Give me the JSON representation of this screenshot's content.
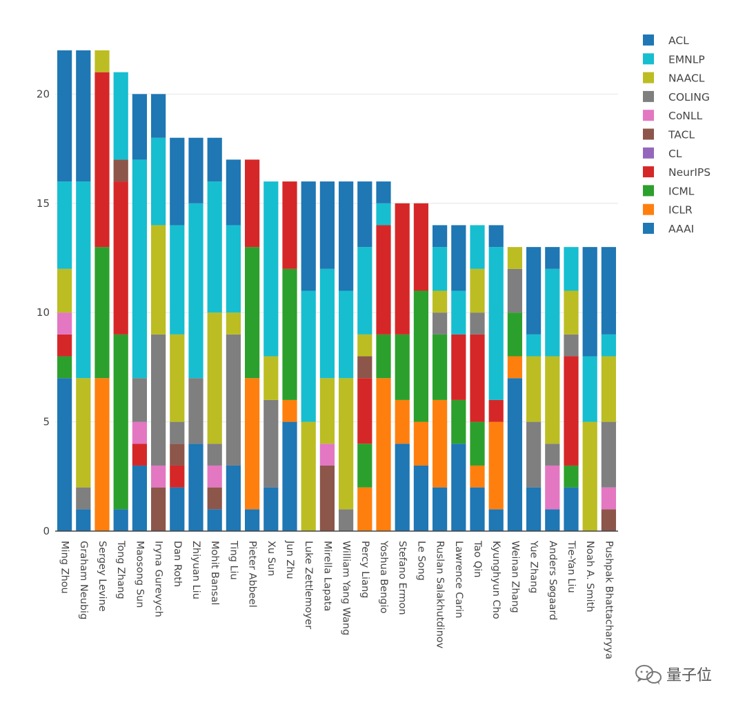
{
  "chart_data": {
    "type": "bar",
    "stacked": true,
    "title": "",
    "xlabel": "",
    "ylabel": "",
    "ylim": [
      0,
      22
    ],
    "yticks": [
      0,
      5,
      10,
      15,
      20
    ],
    "grid": true,
    "legend_position": "top-right",
    "categories": [
      "Ming Zhou",
      "Graham Neubig",
      "Sergey Levine",
      "Tong Zhang",
      "Maosong Sun",
      "Iryna Gurevych",
      "Dan Roth",
      "Zhiyuan Liu",
      "Mohit Bansal",
      "Ting Liu",
      "Pieter Abbeel",
      "Xu Sun",
      "Jun Zhu",
      "Luke Zettlemoyer",
      "Mirella Lapata",
      "William Yang Wang",
      "Percy Liang",
      "Yoshua Bengio",
      "Stefano Ermon",
      "Le Song",
      "Ruslan Salakhutdinov",
      "Lawrence Carin",
      "Tao Qin",
      "Kyunghyun Cho",
      "Weinan Zhang",
      "Yue Zhang",
      "Anders Søgaard",
      "Tie-Yan Liu",
      "Noah A. Smith",
      "Pushpak Bhattacharyya"
    ],
    "series": [
      {
        "name": "AAAI",
        "color": "#1f77b4",
        "values": [
          7,
          1,
          0,
          1,
          3,
          0,
          2,
          4,
          1,
          3,
          1,
          2,
          5,
          0,
          0,
          0,
          0,
          0,
          4,
          3,
          2,
          4,
          2,
          1,
          7,
          2,
          1,
          2,
          0,
          0
        ]
      },
      {
        "name": "ICLR",
        "color": "#ff7f0e",
        "values": [
          0,
          0,
          7,
          0,
          0,
          0,
          0,
          0,
          0,
          0,
          6,
          0,
          1,
          0,
          0,
          0,
          2,
          7,
          2,
          2,
          4,
          0,
          1,
          4,
          1,
          0,
          0,
          0,
          0,
          0
        ]
      },
      {
        "name": "ICML",
        "color": "#2ca02c",
        "values": [
          1,
          0,
          6,
          8,
          0,
          0,
          0,
          0,
          0,
          0,
          6,
          0,
          6,
          0,
          0,
          0,
          2,
          2,
          3,
          6,
          3,
          2,
          2,
          0,
          2,
          0,
          0,
          1,
          0,
          0
        ]
      },
      {
        "name": "NeurIPS",
        "color": "#d62728",
        "values": [
          1,
          0,
          8,
          7,
          1,
          0,
          1,
          0,
          0,
          0,
          4,
          0,
          4,
          0,
          0,
          0,
          3,
          5,
          6,
          4,
          0,
          3,
          4,
          1,
          0,
          0,
          0,
          5,
          0,
          0
        ]
      },
      {
        "name": "CL",
        "color": "#9467bd",
        "values": [
          0,
          0,
          0,
          0,
          0,
          0,
          0,
          0,
          0,
          0,
          0,
          0,
          0,
          0,
          0,
          0,
          0,
          0,
          0,
          0,
          0,
          0,
          0,
          0,
          0,
          0,
          0,
          0,
          0,
          0
        ]
      },
      {
        "name": "TACL",
        "color": "#8c564b",
        "values": [
          0,
          0,
          0,
          1,
          0,
          2,
          1,
          0,
          1,
          0,
          0,
          0,
          0,
          0,
          3,
          0,
          1,
          0,
          0,
          0,
          0,
          0,
          0,
          0,
          0,
          0,
          0,
          0,
          0,
          1
        ]
      },
      {
        "name": "CoNLL",
        "color": "#e377c2",
        "values": [
          1,
          0,
          0,
          0,
          1,
          1,
          0,
          0,
          1,
          0,
          0,
          0,
          0,
          0,
          1,
          0,
          0,
          0,
          0,
          0,
          0,
          0,
          0,
          0,
          0,
          0,
          2,
          0,
          0,
          1
        ]
      },
      {
        "name": "COLING",
        "color": "#7f7f7f",
        "values": [
          0,
          1,
          0,
          0,
          2,
          6,
          1,
          3,
          1,
          6,
          0,
          4,
          0,
          0,
          0,
          1,
          0,
          0,
          0,
          0,
          1,
          0,
          1,
          0,
          2,
          3,
          1,
          1,
          0,
          3
        ]
      },
      {
        "name": "NAACL",
        "color": "#bcbd22",
        "values": [
          2,
          5,
          1,
          0,
          0,
          5,
          4,
          0,
          6,
          1,
          0,
          2,
          0,
          5,
          3,
          6,
          1,
          0,
          0,
          0,
          1,
          0,
          2,
          0,
          1,
          3,
          4,
          2,
          5,
          3
        ]
      },
      {
        "name": "EMNLP",
        "color": "#17becf",
        "values": [
          4,
          9,
          0,
          4,
          10,
          4,
          5,
          8,
          6,
          4,
          0,
          8,
          0,
          6,
          5,
          4,
          4,
          1,
          0,
          0,
          2,
          2,
          2,
          7,
          0,
          1,
          4,
          2,
          3,
          1
        ]
      },
      {
        "name": "ACL",
        "color": "#1f77b4",
        "values": [
          6,
          6,
          0,
          0,
          3,
          2,
          4,
          3,
          2,
          3,
          0,
          0,
          0,
          5,
          4,
          5,
          3,
          1,
          0,
          0,
          1,
          3,
          0,
          1,
          0,
          4,
          1,
          0,
          5,
          4
        ]
      }
    ],
    "legend_order": [
      "ACL",
      "EMNLP",
      "NAACL",
      "COLING",
      "CoNLL",
      "TACL",
      "CL",
      "NeurIPS",
      "ICML",
      "ICLR",
      "AAAI"
    ]
  },
  "watermark": {
    "text": "量子位"
  }
}
